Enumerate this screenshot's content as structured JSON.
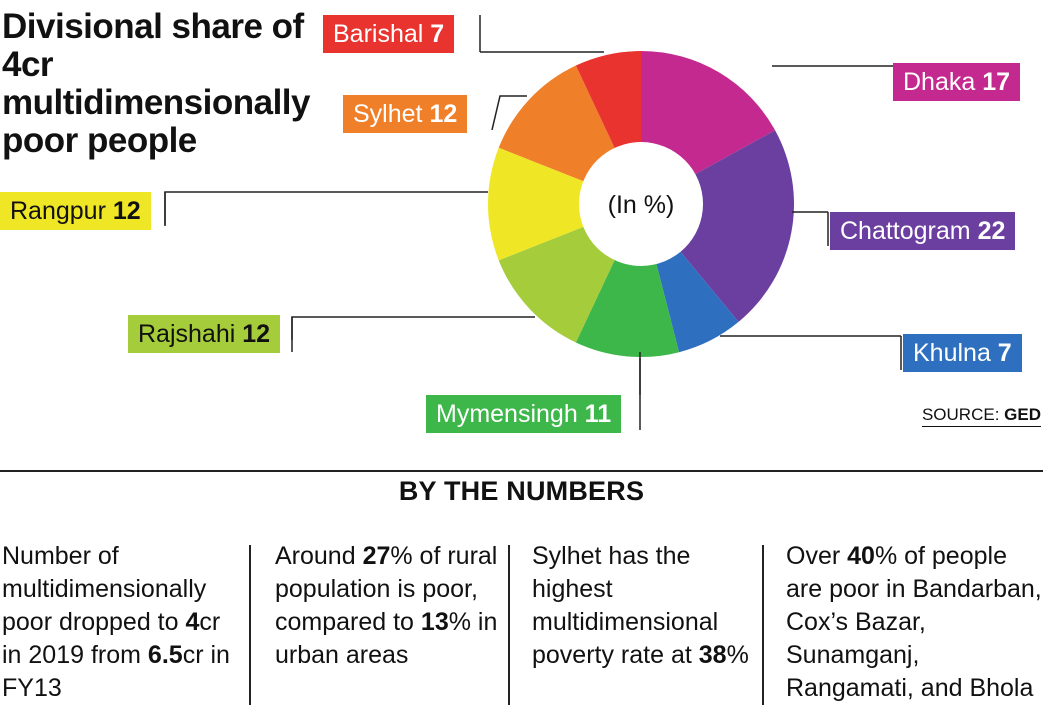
{
  "title": "Divisional share of 4cr multidimensionally poor people",
  "center_label": "(In %)",
  "source": {
    "prefix": "SOURCE: ",
    "name": "GED"
  },
  "section_heading": "BY THE NUMBERS",
  "chart_data": {
    "type": "pie",
    "title": "Divisional share of 4cr multidimensionally poor people",
    "unit": "(In %)",
    "donut": true,
    "slices": [
      {
        "label": "Dhaka",
        "value": 17,
        "color": "#C4298F"
      },
      {
        "label": "Chattogram",
        "value": 22,
        "color": "#6B3FA0"
      },
      {
        "label": "Khulna",
        "value": 7,
        "color": "#2E6FBF"
      },
      {
        "label": "Mymensingh",
        "value": 11,
        "color": "#3DB74A"
      },
      {
        "label": "Rajshahi",
        "value": 12,
        "color": "#A5CC3A"
      },
      {
        "label": "Rangpur",
        "value": 12,
        "color": "#EFE726"
      },
      {
        "label": "Sylhet",
        "value": 12,
        "color": "#F07F2A"
      },
      {
        "label": "Barishal",
        "value": 7,
        "color": "#E8332E"
      }
    ]
  },
  "facts": [
    {
      "segments": [
        {
          "t": "Number of multidimensionally poor dropped to ",
          "b": false
        },
        {
          "t": "4",
          "b": true
        },
        {
          "t": "cr in 2019 from ",
          "b": false
        },
        {
          "t": "6.5",
          "b": true
        },
        {
          "t": "cr in FY13",
          "b": false
        }
      ]
    },
    {
      "segments": [
        {
          "t": "Around ",
          "b": false
        },
        {
          "t": "27",
          "b": true
        },
        {
          "t": "% of rural population is poor, compared to ",
          "b": false
        },
        {
          "t": "13",
          "b": true
        },
        {
          "t": "% in urban areas",
          "b": false
        }
      ]
    },
    {
      "segments": [
        {
          "t": "Sylhet has the highest multidimensional poverty rate at ",
          "b": false
        },
        {
          "t": "38",
          "b": true
        },
        {
          "t": "%",
          "b": false
        }
      ]
    },
    {
      "segments": [
        {
          "t": "Over ",
          "b": false
        },
        {
          "t": "40",
          "b": true
        },
        {
          "t": "% of people are poor in Bandarban, Cox’s Bazar, Sunamganj, Rangamati, and Bhola",
          "b": false
        }
      ]
    }
  ]
}
